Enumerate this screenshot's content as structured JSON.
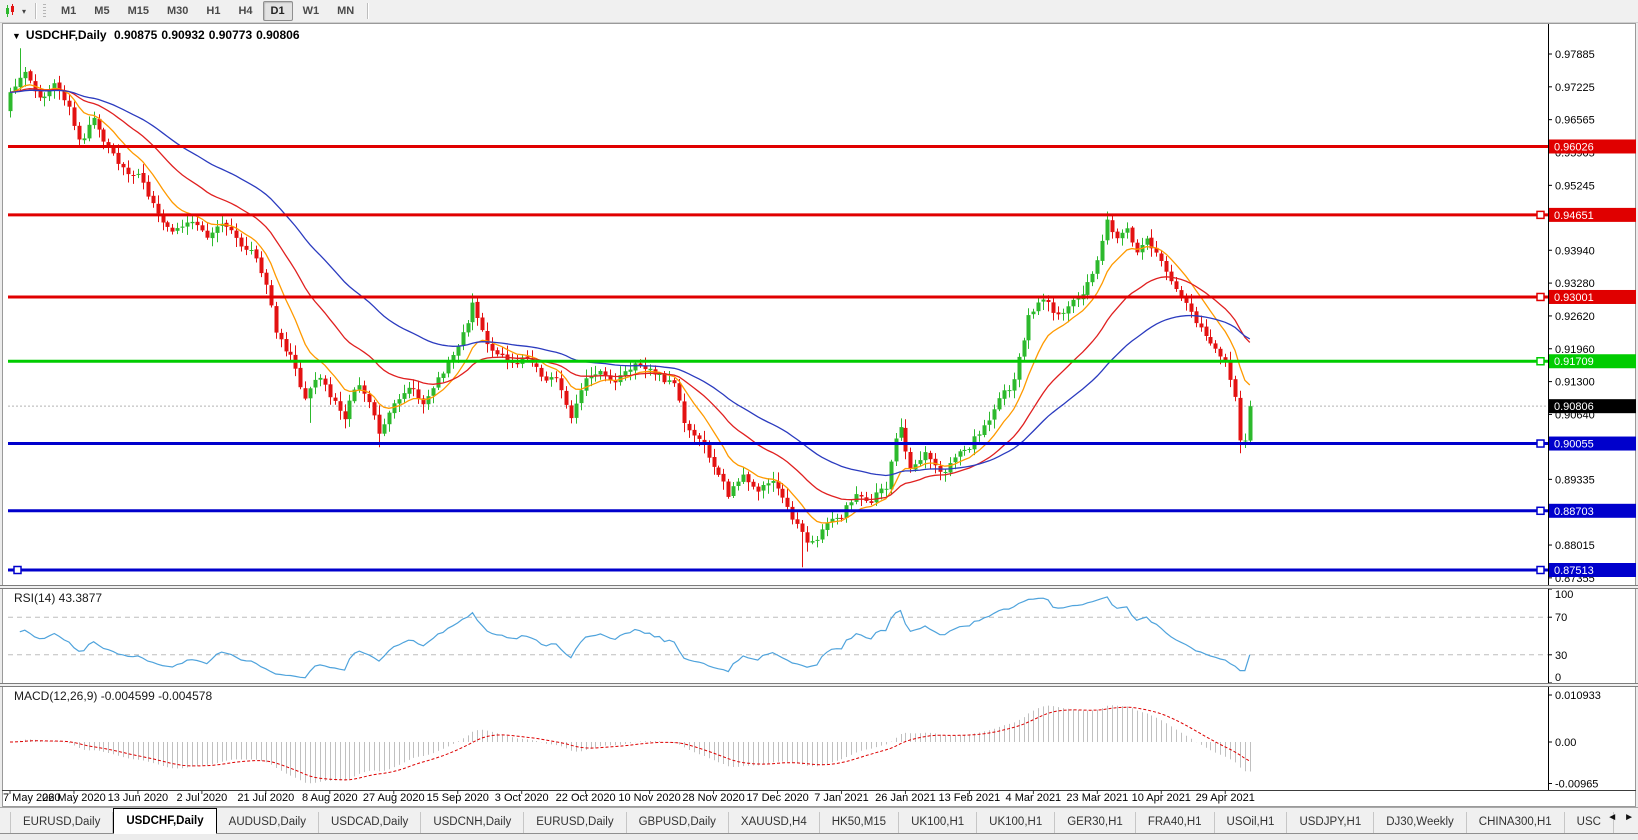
{
  "toolbar": {
    "timeframes": [
      "M1",
      "M5",
      "M15",
      "M30",
      "H1",
      "H4",
      "D1",
      "W1",
      "MN"
    ],
    "active_timeframe": "D1",
    "chart_icon": "candlestick-chart-icon",
    "caret": "▾"
  },
  "chart_data": {
    "type": "candlestick",
    "symbol": "USDCHF",
    "timeframe": "Daily",
    "title": {
      "collapse_glyph": "▼",
      "symbol": "USDCHF,Daily",
      "open": "0.90875",
      "high": "0.90932",
      "low": "0.90773",
      "close": "0.90806"
    },
    "price_axis_ticks": [
      {
        "p": 0.97885,
        "label": "0.97885"
      },
      {
        "p": 0.97225,
        "label": "0.97225"
      },
      {
        "p": 0.96565,
        "label": "0.96565"
      },
      {
        "p": 0.95905,
        "label": "0.95905"
      },
      {
        "p": 0.95245,
        "label": "0.95245"
      },
      {
        "p": 0.9394,
        "label": "0.93940"
      },
      {
        "p": 0.9328,
        "label": "0.93280"
      },
      {
        "p": 0.9262,
        "label": "0.92620"
      },
      {
        "p": 0.9196,
        "label": "0.91960"
      },
      {
        "p": 0.913,
        "label": "0.91300"
      },
      {
        "p": 0.9064,
        "label": "0.90640"
      },
      {
        "p": 0.89335,
        "label": "0.89335"
      },
      {
        "p": 0.88015,
        "label": "0.88015"
      },
      {
        "p": 0.87355,
        "label": "0.87355"
      }
    ],
    "hlines": [
      {
        "p": 0.96026,
        "label": "0.96026",
        "color": "#e00000",
        "handles": "none"
      },
      {
        "p": 0.94651,
        "label": "0.94651",
        "color": "#e00000",
        "handles": "right"
      },
      {
        "p": 0.93001,
        "label": "0.93001",
        "color": "#e00000",
        "handles": "right"
      },
      {
        "p": 0.91709,
        "label": "0.91709",
        "color": "#00cc00",
        "handles": "right"
      },
      {
        "p": 0.90055,
        "label": "0.90055",
        "color": "#0000cc",
        "handles": "right"
      },
      {
        "p": 0.88703,
        "label": "0.88703",
        "color": "#0000cc",
        "handles": "right"
      },
      {
        "p": 0.87513,
        "label": "0.87513",
        "color": "#0000cc",
        "handles": "both"
      }
    ],
    "current_price": {
      "p": 0.90806,
      "label": "0.90806",
      "badge_bg": "#000000",
      "line_color": "#b4b4b4"
    },
    "candles": {
      "count": 253,
      "seed": 42,
      "noise": 0.0016,
      "wick": 0.0016,
      "last_close": 0.90806,
      "up_color": "#2db92d",
      "down_color": "#e31212",
      "anchors": [
        [
          0,
          0.971
        ],
        [
          3,
          0.9752
        ],
        [
          6,
          0.9695
        ],
        [
          9,
          0.9728
        ],
        [
          12,
          0.969
        ],
        [
          14,
          0.9612
        ],
        [
          17,
          0.9655
        ],
        [
          20,
          0.9602
        ],
        [
          23,
          0.9555
        ],
        [
          26,
          0.9545
        ],
        [
          29,
          0.949
        ],
        [
          33,
          0.9425
        ],
        [
          36,
          0.9455
        ],
        [
          40,
          0.9418
        ],
        [
          43,
          0.9448
        ],
        [
          47,
          0.9408
        ],
        [
          50,
          0.9378
        ],
        [
          52,
          0.933
        ],
        [
          54,
          0.923
        ],
        [
          57,
          0.9178
        ],
        [
          60,
          0.9098
        ],
        [
          63,
          0.9142
        ],
        [
          66,
          0.9088
        ],
        [
          68,
          0.9062
        ],
        [
          71,
          0.9128
        ],
        [
          73,
          0.909
        ],
        [
          75,
          0.9028
        ],
        [
          78,
          0.9085
        ],
        [
          81,
          0.9122
        ],
        [
          84,
          0.9092
        ],
        [
          87,
          0.9132
        ],
        [
          90,
          0.9178
        ],
        [
          93,
          0.9252
        ],
        [
          94,
          0.9288
        ],
        [
          96,
          0.9228
        ],
        [
          99,
          0.9182
        ],
        [
          102,
          0.9162
        ],
        [
          105,
          0.9178
        ],
        [
          108,
          0.9142
        ],
        [
          111,
          0.9132
        ],
        [
          114,
          0.9064
        ],
        [
          117,
          0.9132
        ],
        [
          120,
          0.9152
        ],
        [
          123,
          0.9132
        ],
        [
          126,
          0.9162
        ],
        [
          129,
          0.9155
        ],
        [
          132,
          0.9142
        ],
        [
          135,
          0.9122
        ],
        [
          137,
          0.9052
        ],
        [
          140,
          0.9012
        ],
        [
          143,
          0.8962
        ],
        [
          146,
          0.8902
        ],
        [
          149,
          0.8938
        ],
        [
          152,
          0.8908
        ],
        [
          155,
          0.8928
        ],
        [
          158,
          0.8872
        ],
        [
          161,
          0.8822
        ],
        [
          163,
          0.8802
        ],
        [
          166,
          0.8842
        ],
        [
          169,
          0.8862
        ],
        [
          172,
          0.8902
        ],
        [
          175,
          0.8892
        ],
        [
          178,
          0.8922
        ],
        [
          180,
          0.901
        ],
        [
          181,
          0.9032
        ],
        [
          183,
          0.8952
        ],
        [
          186,
          0.8988
        ],
        [
          189,
          0.8942
        ],
        [
          192,
          0.8982
        ],
        [
          195,
          0.9002
        ],
        [
          198,
          0.9042
        ],
        [
          201,
          0.9092
        ],
        [
          204,
          0.9132
        ],
        [
          207,
          0.9262
        ],
        [
          210,
          0.9302
        ],
        [
          213,
          0.9262
        ],
        [
          216,
          0.9292
        ],
        [
          219,
          0.9322
        ],
        [
          221,
          0.9372
        ],
        [
          223,
          0.9448
        ],
        [
          225,
          0.9418
        ],
        [
          227,
          0.9442
        ],
        [
          229,
          0.9392
        ],
        [
          231,
          0.9425
        ],
        [
          233,
          0.9385
        ],
        [
          236,
          0.9332
        ],
        [
          239,
          0.9285
        ],
        [
          242,
          0.9232
        ],
        [
          245,
          0.9195
        ],
        [
          247,
          0.9168
        ],
        [
          249,
          0.9092
        ],
        [
          250,
          0.9012
        ],
        [
          251,
          0.9005
        ],
        [
          252,
          0.90806
        ]
      ],
      "wick_overrides": {
        "2": {
          "high": 0.98
        },
        "61": {
          "low": 0.9047
        },
        "75": {
          "low": 0.8998
        },
        "94": {
          "high": 0.9296
        },
        "114": {
          "low": 0.9046
        },
        "161": {
          "low": 0.8757
        },
        "181": {
          "high": 0.9056
        },
        "223": {
          "high": 0.9472
        },
        "250": {
          "low": 0.8986
        }
      }
    },
    "moving_averages": [
      {
        "period": 10,
        "color": "#ff9a00"
      },
      {
        "period": 26,
        "color": "#e02020"
      },
      {
        "period": 50,
        "color": "#2b3bbf"
      }
    ],
    "rsi": {
      "label": "RSI(14) 43.3877",
      "period": 14,
      "color": "#4fa3dc",
      "levels": [
        70,
        30
      ],
      "axis": [
        {
          "v": 100,
          "label": "100"
        },
        {
          "v": 70,
          "label": "70"
        },
        {
          "v": 30,
          "label": "30"
        },
        {
          "v": 0,
          "label": "0"
        }
      ]
    },
    "macd": {
      "label": "MACD(12,26,9) -0.004599 -0.004578",
      "fast": 12,
      "slow": 26,
      "signal": 9,
      "bar_color": "#c0c0c0",
      "signal_color": "#dd0000",
      "axis": [
        {
          "v": 0.010933,
          "label": "0.010933"
        },
        {
          "v": 0,
          "label": "0.00"
        },
        {
          "v": -0.00965,
          "label": "-0.00965"
        }
      ]
    },
    "dates": [
      "7 May 2020",
      "26 May 2020",
      "13 Jun 2020",
      "2 Jul 2020",
      "21 Jul 2020",
      "8 Aug 2020",
      "27 Aug 2020",
      "15 Sep 2020",
      "3 Oct 2020",
      "22 Oct 2020",
      "10 Nov 2020",
      "28 Nov 2020",
      "17 Dec 2020",
      "7 Jan 2021",
      "26 Jan 2021",
      "13 Feb 2021",
      "4 Mar 2021",
      "23 Mar 2021",
      "10 Apr 2021",
      "29 Apr 2021"
    ],
    "date_step": 13
  },
  "tabs": {
    "items": [
      "EURUSD,Daily",
      "USDCHF,Daily",
      "AUDUSD,Daily",
      "USDCAD,Daily",
      "USDCNH,Daily",
      "EURUSD,Daily",
      "GBPUSD,Daily",
      "XAUUSD,H4",
      "HK50,M15",
      "UK100,H1",
      "UK100,H1",
      "GER30,H1",
      "FRA40,H1",
      "USOil,H1",
      "USDJPY,H1",
      "DJ30,Weekly",
      "CHINA300,H1",
      "USC"
    ],
    "active_index": 1,
    "scroll_left": "◄",
    "scroll_right": "►"
  }
}
